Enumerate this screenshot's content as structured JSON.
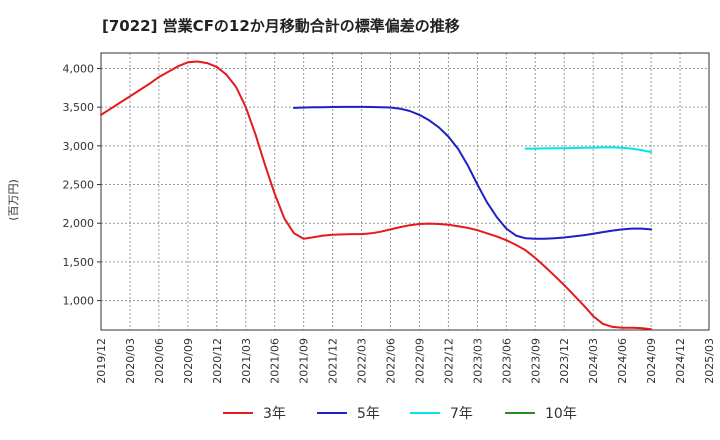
{
  "chart_data": {
    "type": "line",
    "title": "[7022]  営業CFの12か月移動合計の標準偏差の推移",
    "ylabel": "(百万円)",
    "xlabel": "",
    "ylim": [
      620,
      4200
    ],
    "yticks": [
      1000,
      1500,
      2000,
      2500,
      3000,
      3500,
      4000
    ],
    "ytick_labels": [
      "1,000",
      "1,500",
      "2,000",
      "2,500",
      "3,000",
      "3,500",
      "4,000"
    ],
    "x_categories": [
      "2019/12",
      "2020/03",
      "2020/06",
      "2020/09",
      "2020/12",
      "2021/03",
      "2021/06",
      "2021/09",
      "2021/12",
      "2022/03",
      "2022/06",
      "2022/09",
      "2022/12",
      "2023/03",
      "2023/06",
      "2023/09",
      "2023/12",
      "2024/03",
      "2024/06",
      "2024/09",
      "2024/12",
      "2025/03"
    ],
    "grid": true,
    "legend_position": "bottom",
    "series": [
      {
        "name": "3年",
        "color": "#e41a1c",
        "x": [
          "2019/12",
          "2020/01",
          "2020/02",
          "2020/03",
          "2020/04",
          "2020/05",
          "2020/06",
          "2020/07",
          "2020/08",
          "2020/09",
          "2020/10",
          "2020/11",
          "2020/12",
          "2021/01",
          "2021/02",
          "2021/03",
          "2021/04",
          "2021/05",
          "2021/06",
          "2021/07",
          "2021/08",
          "2021/09",
          "2021/10",
          "2021/11",
          "2021/12",
          "2022/01",
          "2022/02",
          "2022/03",
          "2022/04",
          "2022/05",
          "2022/06",
          "2022/07",
          "2022/08",
          "2022/09",
          "2022/10",
          "2022/11",
          "2022/12",
          "2023/01",
          "2023/02",
          "2023/03",
          "2023/04",
          "2023/05",
          "2023/06",
          "2023/07",
          "2023/08",
          "2023/09",
          "2023/10",
          "2023/11",
          "2023/12",
          "2024/01",
          "2024/02",
          "2024/03",
          "2024/04",
          "2024/05",
          "2024/06",
          "2024/07",
          "2024/08",
          "2024/09"
        ],
        "values": [
          3400,
          3480,
          3560,
          3640,
          3720,
          3800,
          3890,
          3960,
          4030,
          4080,
          4090,
          4070,
          4020,
          3920,
          3760,
          3500,
          3150,
          2750,
          2380,
          2060,
          1870,
          1800,
          1820,
          1840,
          1850,
          1855,
          1860,
          1860,
          1870,
          1890,
          1920,
          1950,
          1975,
          1990,
          1995,
          1990,
          1980,
          1960,
          1940,
          1910,
          1870,
          1830,
          1780,
          1720,
          1650,
          1550,
          1440,
          1320,
          1200,
          1070,
          940,
          800,
          700,
          660,
          650,
          650,
          645,
          630
        ]
      },
      {
        "name": "5年",
        "color": "#1f1fc8",
        "x": [
          "2021/08",
          "2021/09",
          "2021/10",
          "2021/11",
          "2021/12",
          "2022/01",
          "2022/02",
          "2022/03",
          "2022/04",
          "2022/05",
          "2022/06",
          "2022/07",
          "2022/08",
          "2022/09",
          "2022/10",
          "2022/11",
          "2022/12",
          "2023/01",
          "2023/02",
          "2023/03",
          "2023/04",
          "2023/05",
          "2023/06",
          "2023/07",
          "2023/08",
          "2023/09",
          "2023/10",
          "2023/11",
          "2023/12",
          "2024/01",
          "2024/02",
          "2024/03",
          "2024/04",
          "2024/05",
          "2024/06",
          "2024/07",
          "2024/08",
          "2024/09"
        ],
        "values": [
          3490,
          3495,
          3500,
          3500,
          3502,
          3503,
          3503,
          3503,
          3502,
          3500,
          3495,
          3480,
          3450,
          3400,
          3330,
          3240,
          3120,
          2960,
          2750,
          2500,
          2270,
          2080,
          1930,
          1840,
          1805,
          1800,
          1800,
          1805,
          1815,
          1830,
          1845,
          1865,
          1885,
          1905,
          1920,
          1930,
          1930,
          1920
        ]
      },
      {
        "name": "7年",
        "color": "#00e5ee",
        "x": [
          "2023/08",
          "2023/09",
          "2023/10",
          "2023/11",
          "2023/12",
          "2024/01",
          "2024/02",
          "2024/03",
          "2024/04",
          "2024/05",
          "2024/06",
          "2024/07",
          "2024/08",
          "2024/09"
        ],
        "values": [
          2965,
          2965,
          2967,
          2968,
          2970,
          2972,
          2975,
          2978,
          2980,
          2980,
          2975,
          2965,
          2945,
          2920
        ]
      },
      {
        "name": "10年",
        "color": "#228b22",
        "x": [],
        "values": []
      }
    ]
  }
}
